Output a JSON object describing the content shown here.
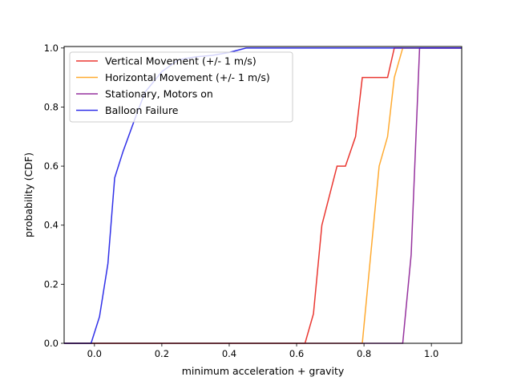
{
  "chart_data": {
    "type": "line",
    "title": "",
    "xlabel": "minimum acceleration + gravity",
    "ylabel": "probability (CDF)",
    "xlim": [
      -0.09,
      1.09
    ],
    "ylim": [
      0,
      1.005
    ],
    "xticks": [
      0.0,
      0.2,
      0.4,
      0.6,
      0.8,
      1.0
    ],
    "xtick_labels": [
      "0.0",
      "0.2",
      "0.4",
      "0.6",
      "0.8",
      "1.0"
    ],
    "yticks": [
      0.0,
      0.2,
      0.4,
      0.6,
      0.8,
      1.0
    ],
    "ytick_labels": [
      "0.0",
      "0.2",
      "0.4",
      "0.6",
      "0.8",
      "1.0"
    ],
    "grid": false,
    "legend_position": "top-left",
    "series": [
      {
        "name": "Vertical Movement (+/- 1 m/s)",
        "color": "#e8211b",
        "x": [
          -0.09,
          0.625,
          0.65,
          0.675,
          0.72,
          0.745,
          0.775,
          0.795,
          0.87,
          0.89,
          1.09
        ],
        "y": [
          0,
          0,
          0.1,
          0.4,
          0.6,
          0.6,
          0.7,
          0.9,
          0.9,
          1.0,
          1.0
        ]
      },
      {
        "name": "Horizontal Movement (+/- 1 m/s)",
        "color": "#ffa11a",
        "x": [
          -0.09,
          0.795,
          0.845,
          0.87,
          0.89,
          0.915,
          1.09
        ],
        "y": [
          0,
          0,
          0.6,
          0.7,
          0.9,
          1.0,
          1.0
        ]
      },
      {
        "name": "Stationary, Motors on",
        "color": "#8b1c93",
        "x": [
          -0.09,
          0.915,
          0.94,
          0.965,
          1.09
        ],
        "y": [
          0,
          0,
          0.3,
          1.0,
          1.0
        ]
      },
      {
        "name": "Balloon Failure",
        "color": "#1a1ae6",
        "x": [
          -0.09,
          -0.01,
          0.015,
          0.04,
          0.06,
          0.085,
          0.12,
          0.15,
          0.2,
          0.25,
          0.3,
          0.35,
          0.4,
          0.45,
          1.09
        ],
        "y": [
          0,
          0,
          0.09,
          0.27,
          0.56,
          0.65,
          0.76,
          0.85,
          0.92,
          0.96,
          0.97,
          0.975,
          0.985,
          1.0,
          1.0
        ]
      }
    ]
  }
}
